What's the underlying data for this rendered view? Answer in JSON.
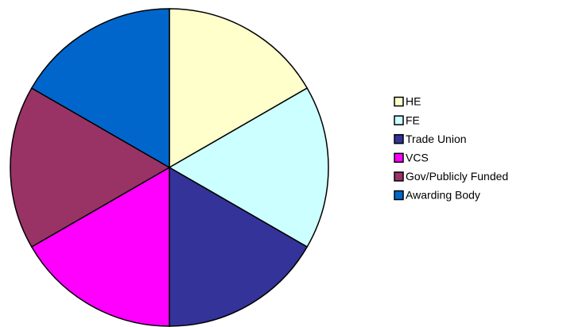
{
  "chart_data": {
    "type": "pie",
    "categories": [
      "HE",
      "FE",
      "Trade Union",
      "VCS",
      "Gov/Publicly Funded",
      "Awarding Body"
    ],
    "values": [
      1,
      1,
      1,
      1,
      1,
      1
    ],
    "colors": [
      "#ffffcc",
      "#ccffff",
      "#333399",
      "#ff00ff",
      "#993366",
      "#0066cc"
    ],
    "legend": "right"
  }
}
